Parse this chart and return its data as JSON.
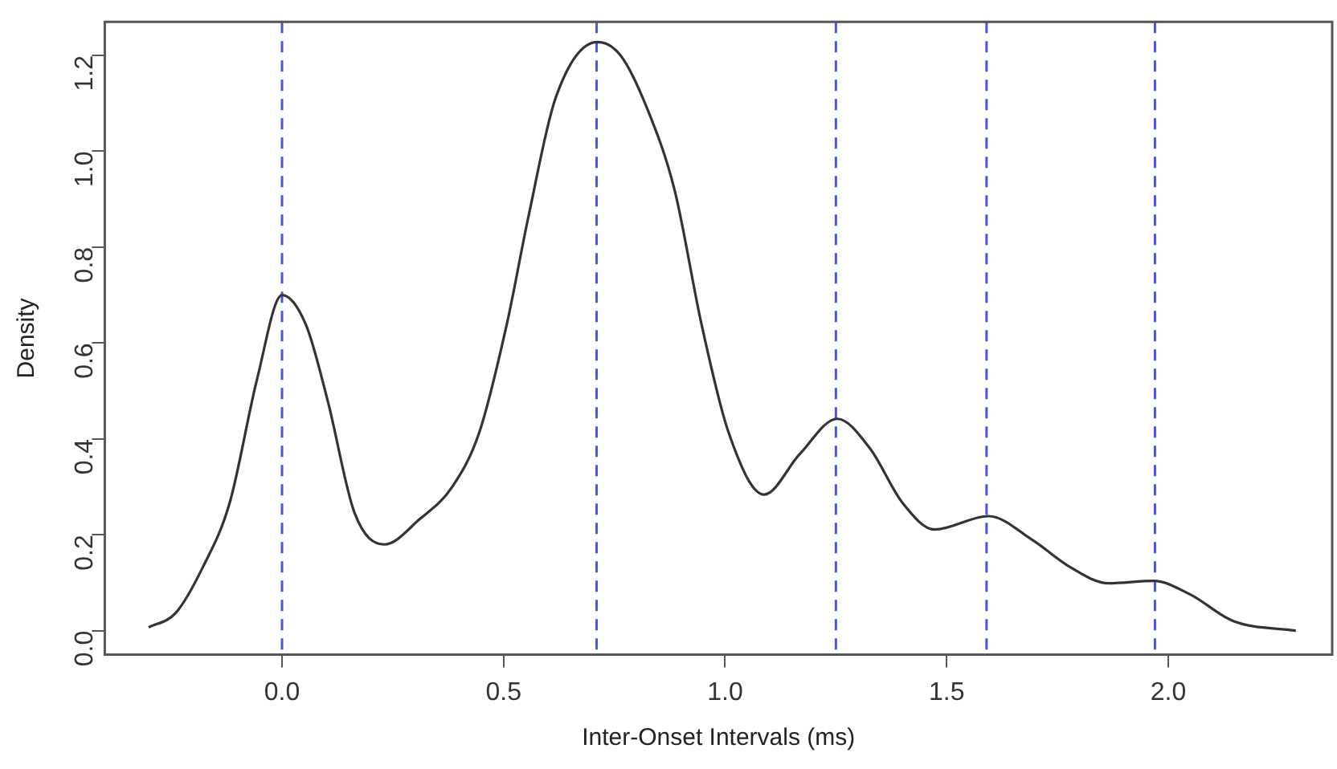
{
  "chart_data": {
    "type": "line",
    "xlabel": "Inter-Onset Intervals (ms)",
    "ylabel": "Density",
    "series": [
      {
        "color": "#333333",
        "x": [
          -0.301,
          -0.24,
          -0.179,
          -0.118,
          -0.056,
          0.0,
          0.054,
          0.103,
          0.164,
          0.231,
          0.311,
          0.384,
          0.445,
          0.507,
          0.556,
          0.617,
          0.712,
          0.764,
          0.825,
          0.886,
          0.947,
          1.008,
          1.088,
          1.168,
          1.253,
          1.327,
          1.4,
          1.473,
          1.594,
          1.694,
          1.78,
          1.865,
          1.967,
          2.049,
          2.147,
          2.288
        ],
        "values": [
          0.007,
          0.037,
          0.132,
          0.267,
          0.526,
          0.7,
          0.638,
          0.48,
          0.245,
          0.18,
          0.233,
          0.3,
          0.413,
          0.638,
          0.863,
          1.11,
          1.228,
          1.2,
          1.087,
          0.919,
          0.638,
          0.413,
          0.284,
          0.368,
          0.442,
          0.38,
          0.267,
          0.211,
          0.239,
          0.189,
          0.132,
          0.099,
          0.104,
          0.076,
          0.02,
          0.0
        ]
      }
    ],
    "xlim": [
      -0.4,
      2.37
    ],
    "ylim": [
      -0.05,
      1.27
    ],
    "xticks": [
      {
        "value": 0,
        "label": "0.0"
      },
      {
        "value": 0.5,
        "label": "0.5"
      },
      {
        "value": 1,
        "label": "1.0"
      },
      {
        "value": 1.5,
        "label": "1.5"
      },
      {
        "value": 2,
        "label": "2.0"
      }
    ],
    "yticks": [
      {
        "value": 0,
        "label": "0.0"
      },
      {
        "value": 0.2,
        "label": "0.2"
      },
      {
        "value": 0.4,
        "label": "0.4"
      },
      {
        "value": 0.6,
        "label": "0.6"
      },
      {
        "value": 0.8,
        "label": "0.8"
      },
      {
        "value": 1,
        "label": "1.0"
      },
      {
        "value": 1.2,
        "label": "1.2"
      }
    ],
    "ref_lines": [
      {
        "axis": "x",
        "value": 0.0,
        "color": "#4455ee",
        "line_style": "dashed"
      },
      {
        "axis": "x",
        "value": 0.71,
        "color": "#4455ee",
        "line_style": "dashed"
      },
      {
        "axis": "x",
        "value": 1.25,
        "color": "#4455ee",
        "line_style": "dashed"
      },
      {
        "axis": "x",
        "value": 1.59,
        "color": "#4455ee",
        "line_style": "dashed"
      },
      {
        "axis": "x",
        "value": 1.97,
        "color": "#4455ee",
        "line_style": "dashed"
      }
    ],
    "grid": false,
    "legend": false,
    "marker": "none",
    "line_style": "solid"
  }
}
